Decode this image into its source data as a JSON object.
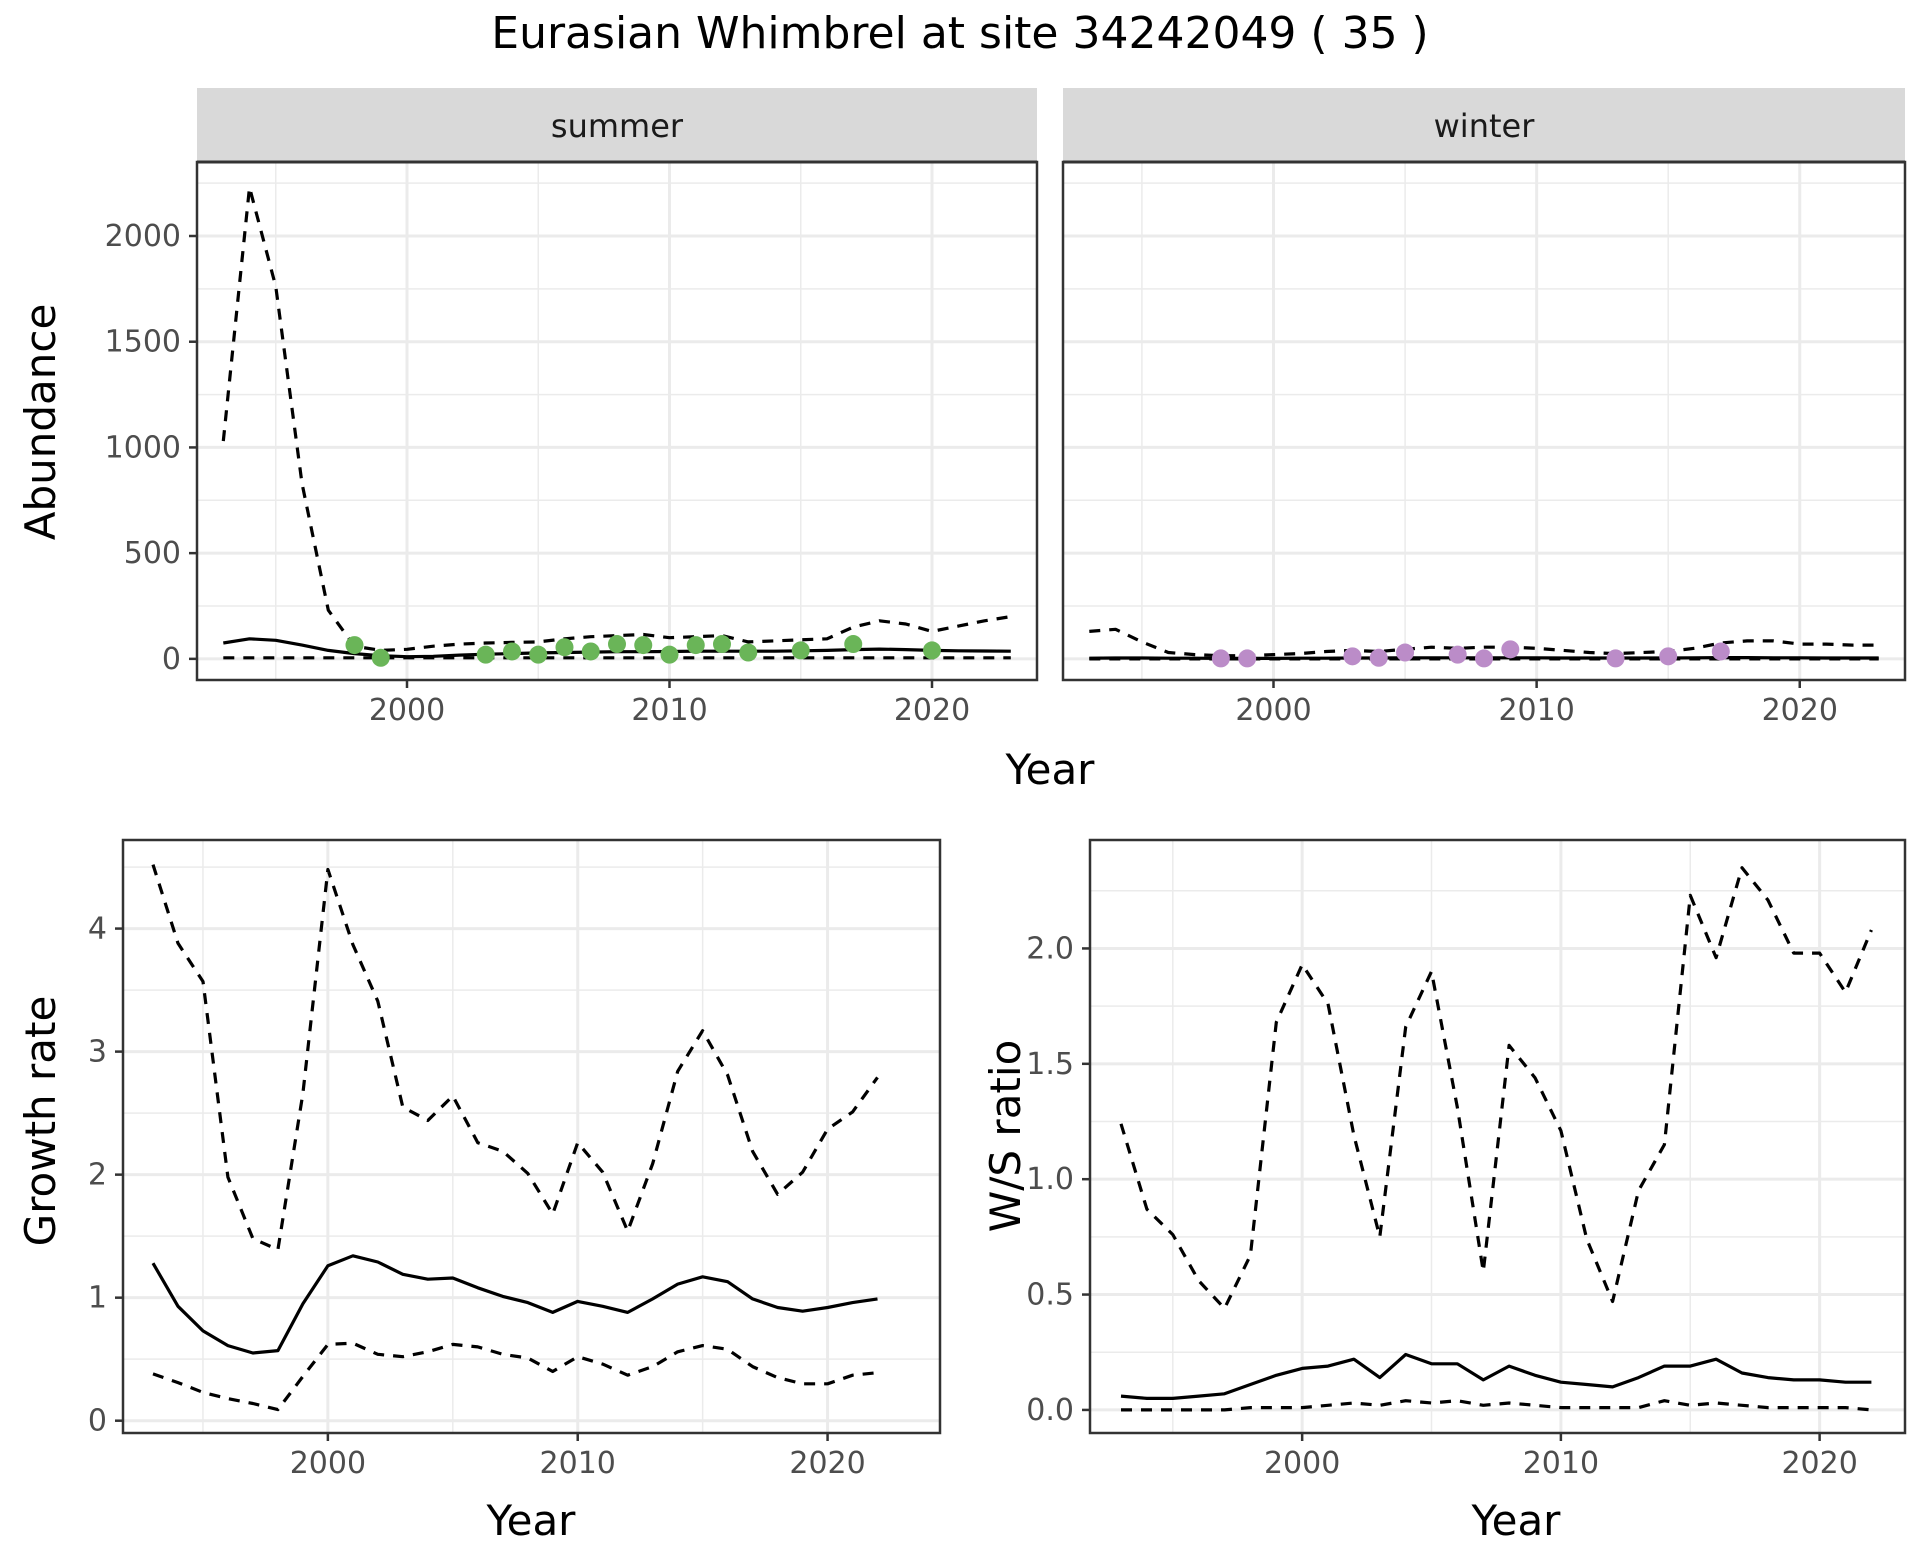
{
  "figure": {
    "title": "Eurasian Whimbrel at site 34242049 ( 35 )"
  },
  "colors": {
    "summer_points": "#6ab558",
    "winter_points": "#bb8cc8",
    "line": "#000000",
    "strip_fill": "#d9d9d9",
    "grid": "#ebebeb"
  },
  "chart_data": [
    {
      "id": "abundance",
      "type": "line",
      "facets": [
        "summer",
        "winter"
      ],
      "xlabel": "Year",
      "ylabel": "Abundance",
      "xlim": [
        1992,
        2024
      ],
      "ylim": [
        -100,
        2350
      ],
      "xticks": [
        2000,
        2010,
        2020
      ],
      "yticks": [
        0,
        500,
        1000,
        1500,
        2000
      ],
      "grid": true,
      "legend": "none",
      "panels": {
        "summer": {
          "x": [
            1993,
            1994,
            1995,
            1996,
            1997,
            1998,
            1999,
            2000,
            2001,
            2002,
            2003,
            2004,
            2005,
            2006,
            2007,
            2008,
            2009,
            2010,
            2011,
            2012,
            2013,
            2014,
            2015,
            2016,
            2017,
            2018,
            2019,
            2020,
            2021,
            2022,
            2023
          ],
          "mean": [
            75,
            95,
            88,
            65,
            40,
            25,
            15,
            10,
            12,
            18,
            22,
            25,
            28,
            30,
            32,
            34,
            34,
            35,
            36,
            36,
            36,
            36,
            38,
            40,
            44,
            46,
            44,
            40,
            38,
            37,
            36
          ],
          "lower": [
            5,
            5,
            5,
            5,
            5,
            5,
            5,
            5,
            5,
            5,
            5,
            5,
            5,
            5,
            5,
            5,
            5,
            5,
            5,
            5,
            5,
            5,
            5,
            5,
            5,
            5,
            5,
            5,
            5,
            5,
            5
          ],
          "upper": [
            1030,
            2230,
            1760,
            830,
            230,
            60,
            40,
            45,
            60,
            70,
            75,
            78,
            80,
            95,
            105,
            110,
            115,
            100,
            105,
            110,
            80,
            85,
            90,
            95,
            150,
            180,
            165,
            130,
            155,
            180,
            200
          ],
          "points_x": [
            1998,
            1999,
            2003,
            2004,
            2005,
            2006,
            2007,
            2008,
            2009,
            2010,
            2011,
            2012,
            2013,
            2015,
            2017,
            2020
          ],
          "points_y": [
            65,
            5,
            20,
            35,
            20,
            55,
            35,
            70,
            65,
            20,
            65,
            70,
            30,
            40,
            70,
            40
          ]
        },
        "winter": {
          "x": [
            1993,
            1994,
            1995,
            1996,
            1997,
            1998,
            1999,
            2000,
            2001,
            2002,
            2003,
            2004,
            2005,
            2006,
            2007,
            2008,
            2009,
            2010,
            2011,
            2012,
            2013,
            2014,
            2015,
            2016,
            2017,
            2018,
            2019,
            2020,
            2021,
            2022,
            2023
          ],
          "mean": [
            3,
            4,
            4,
            3,
            3,
            2,
            2,
            2,
            3,
            3,
            4,
            4,
            5,
            5,
            5,
            5,
            5,
            5,
            4,
            4,
            4,
            4,
            4,
            5,
            6,
            6,
            5,
            5,
            4,
            4,
            4
          ],
          "lower": [
            0,
            0,
            0,
            0,
            0,
            0,
            0,
            0,
            0,
            0,
            0,
            0,
            0,
            0,
            0,
            0,
            0,
            0,
            0,
            0,
            0,
            0,
            0,
            0,
            0,
            0,
            0,
            0,
            0,
            0,
            0
          ],
          "upper": [
            130,
            140,
            80,
            30,
            20,
            15,
            15,
            20,
            25,
            35,
            40,
            35,
            45,
            55,
            50,
            55,
            55,
            50,
            40,
            30,
            25,
            30,
            35,
            50,
            75,
            85,
            85,
            70,
            70,
            65,
            65
          ],
          "points_x": [
            1998,
            1999,
            2003,
            2004,
            2005,
            2007,
            2008,
            2009,
            2013,
            2015,
            2017
          ],
          "points_y": [
            2,
            2,
            12,
            5,
            30,
            20,
            2,
            45,
            2,
            12,
            35
          ]
        }
      }
    },
    {
      "id": "growth",
      "type": "line",
      "xlabel": "Year",
      "ylabel": "Growth rate",
      "xlim": [
        1991.8,
        2024.5
      ],
      "ylim": [
        -0.1,
        4.72
      ],
      "xticks": [
        2000,
        2010,
        2020
      ],
      "yticks": [
        0,
        1,
        2,
        3,
        4
      ],
      "grid": true,
      "legend": "none",
      "x": [
        1993,
        1994,
        1995,
        1996,
        1997,
        1998,
        1999,
        2000,
        2001,
        2002,
        2003,
        2004,
        2005,
        2006,
        2007,
        2008,
        2009,
        2010,
        2011,
        2012,
        2013,
        2014,
        2015,
        2016,
        2017,
        2018,
        2019,
        2020,
        2021,
        2022
      ],
      "mean": [
        1.28,
        0.93,
        0.73,
        0.61,
        0.55,
        0.57,
        0.95,
        1.26,
        1.34,
        1.29,
        1.19,
        1.15,
        1.16,
        1.08,
        1.01,
        0.96,
        0.88,
        0.97,
        0.93,
        0.88,
        0.99,
        1.11,
        1.17,
        1.13,
        0.99,
        0.92,
        0.89,
        0.92,
        0.96,
        0.99
      ],
      "lower": [
        0.38,
        0.31,
        0.23,
        0.18,
        0.14,
        0.09,
        0.36,
        0.62,
        0.63,
        0.54,
        0.52,
        0.56,
        0.62,
        0.6,
        0.54,
        0.51,
        0.4,
        0.52,
        0.46,
        0.37,
        0.44,
        0.56,
        0.61,
        0.58,
        0.44,
        0.35,
        0.3,
        0.3,
        0.37,
        0.39
      ],
      "upper": [
        4.52,
        3.88,
        3.57,
        1.98,
        1.48,
        1.39,
        2.66,
        4.48,
        3.87,
        3.41,
        2.55,
        2.44,
        2.64,
        2.26,
        2.19,
        2.01,
        1.68,
        2.26,
        2.02,
        1.54,
        2.09,
        2.84,
        3.17,
        2.81,
        2.19,
        1.84,
        2.02,
        2.37,
        2.51,
        2.79
      ]
    },
    {
      "id": "ws_ratio",
      "type": "line",
      "xlabel": "Year",
      "ylabel": "W/S ratio",
      "xlim": [
        1991.8,
        2023.3
      ],
      "ylim": [
        -0.1,
        2.47
      ],
      "xticks": [
        2000,
        2010,
        2020
      ],
      "yticks": [
        0.0,
        0.5,
        1.0,
        1.5,
        2.0
      ],
      "ytick_labels": [
        "0.0",
        "0.5",
        "1.0",
        "1.5",
        "2.0"
      ],
      "grid": true,
      "legend": "none",
      "x": [
        1993,
        1994,
        1995,
        1996,
        1997,
        1998,
        1999,
        2000,
        2001,
        2002,
        2003,
        2004,
        2005,
        2006,
        2007,
        2008,
        2009,
        2010,
        2011,
        2012,
        2013,
        2014,
        2015,
        2016,
        2017,
        2018,
        2019,
        2020,
        2021,
        2022
      ],
      "mean": [
        0.06,
        0.05,
        0.05,
        0.06,
        0.07,
        0.11,
        0.15,
        0.18,
        0.19,
        0.22,
        0.14,
        0.24,
        0.2,
        0.2,
        0.13,
        0.19,
        0.15,
        0.12,
        0.11,
        0.1,
        0.14,
        0.19,
        0.19,
        0.22,
        0.16,
        0.14,
        0.13,
        0.13,
        0.12,
        0.12
      ],
      "lower": [
        0.0,
        0.0,
        0.0,
        0.0,
        0.0,
        0.01,
        0.01,
        0.01,
        0.02,
        0.03,
        0.02,
        0.04,
        0.03,
        0.04,
        0.02,
        0.03,
        0.02,
        0.01,
        0.01,
        0.01,
        0.01,
        0.04,
        0.02,
        0.03,
        0.02,
        0.01,
        0.01,
        0.01,
        0.01,
        0.0
      ],
      "upper": [
        1.24,
        0.87,
        0.76,
        0.56,
        0.44,
        0.67,
        1.68,
        1.93,
        1.76,
        1.19,
        0.75,
        1.66,
        1.9,
        1.31,
        0.6,
        1.58,
        1.44,
        1.21,
        0.74,
        0.47,
        0.95,
        1.15,
        2.23,
        1.96,
        2.35,
        2.21,
        1.98,
        1.98,
        1.81,
        2.08
      ]
    }
  ]
}
